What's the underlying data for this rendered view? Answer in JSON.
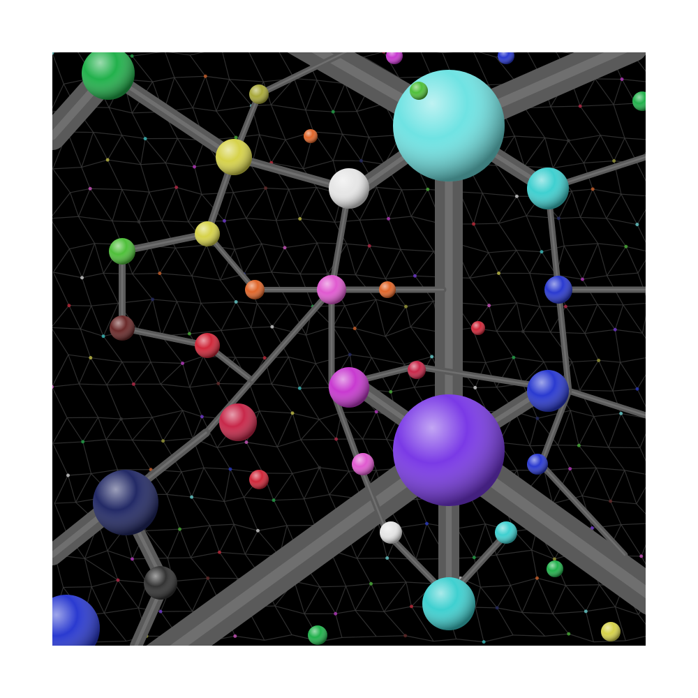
{
  "scene": {
    "background_color": "#000000",
    "border_color": "#ffffff",
    "rod_color": "#5a5a5a",
    "rod_highlight": "#8a8a8a",
    "mesh_color": "#3a3a3a",
    "node_colors": {
      "cyan_large": "#6fe3e3",
      "cyan": "#3fd0d0",
      "violet_large": "#7a3ae6",
      "green": "#22b14c",
      "lime": "#4fc03a",
      "yellow": "#d6d24a",
      "olive": "#a8a83a",
      "white": "#e6e6e6",
      "magenta": "#c83ad0",
      "pink": "#e05ad0",
      "orange": "#e0662a",
      "red": "#d0283a",
      "crimson": "#c8284a",
      "blue": "#2a3ad0",
      "navy": "#232a66",
      "maroon": "#6a2a2a",
      "dark_gray": "#333333"
    }
  }
}
